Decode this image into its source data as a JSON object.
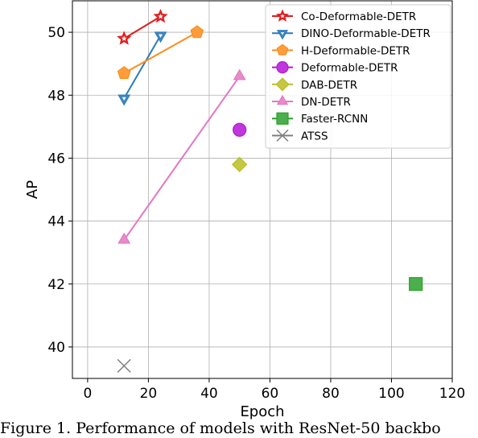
{
  "caption": "Figure 1.  Performance of models with ResNet-50 backbo",
  "chart_data": {
    "type": "scatter",
    "xlabel": "Epoch",
    "ylabel": "AP",
    "xlim": [
      -5,
      120
    ],
    "ylim": [
      39,
      51
    ],
    "xticks": [
      0,
      20,
      40,
      60,
      80,
      100,
      120
    ],
    "yticks": [
      40,
      42,
      44,
      46,
      48,
      50
    ],
    "grid": true,
    "legend_position": "top-right",
    "series": [
      {
        "name": "Co-Deformable-DETR",
        "color": "#e31a1c",
        "marker": "star",
        "x": [
          12,
          24
        ],
        "y": [
          49.8,
          50.5
        ]
      },
      {
        "name": "DINO-Deformable-DETR",
        "color": "#2b7bba",
        "marker": "triangle-down",
        "x": [
          12,
          24
        ],
        "y": [
          47.9,
          49.9
        ]
      },
      {
        "name": "H-Deformable-DETR",
        "color": "#ff8c1a",
        "marker": "pentagon",
        "x": [
          12,
          36
        ],
        "y": [
          48.7,
          50.0
        ]
      },
      {
        "name": "Deformable-DETR",
        "color": "#b515d6",
        "marker": "circle",
        "x": [
          50
        ],
        "y": [
          46.9
        ]
      },
      {
        "name": "DAB-DETR",
        "color": "#bcbd22",
        "marker": "diamond",
        "x": [
          50
        ],
        "y": [
          45.8
        ]
      },
      {
        "name": "DN-DETR",
        "color": "#e377c2",
        "marker": "triangle-up",
        "x": [
          12,
          50
        ],
        "y": [
          43.4,
          48.6
        ]
      },
      {
        "name": "Faster-RCNN",
        "color": "#2ca02c",
        "marker": "square",
        "x": [
          108
        ],
        "y": [
          42.0
        ]
      },
      {
        "name": "ATSS",
        "color": "#7f7f7f",
        "marker": "x",
        "x": [
          12
        ],
        "y": [
          39.4
        ]
      }
    ]
  }
}
